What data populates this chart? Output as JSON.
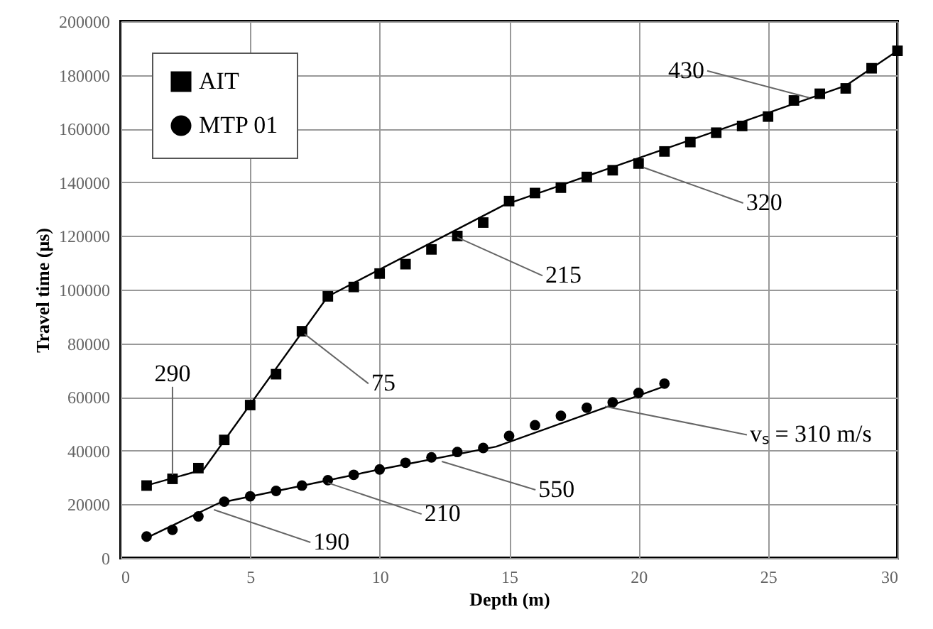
{
  "chart_data": {
    "type": "scatter",
    "xlabel": "Depth (m)",
    "ylabel": "Travel time (μs)",
    "xlim": [
      0,
      30
    ],
    "xticks": [
      0,
      5,
      10,
      15,
      20,
      25,
      30
    ],
    "ylim": [
      0,
      200000
    ],
    "yticks": [
      0,
      20000,
      40000,
      60000,
      80000,
      100000,
      120000,
      140000,
      160000,
      180000,
      200000
    ],
    "grid": true,
    "legend": "top left",
    "series": [
      {
        "name": "AIT",
        "type": "scatter",
        "marker": "square",
        "color": "#000000",
        "x": [
          1,
          2,
          3,
          4,
          5,
          6,
          7,
          8,
          9,
          10,
          11,
          12,
          13,
          14,
          15,
          16,
          17,
          18,
          19,
          20,
          21,
          22,
          23,
          24,
          25,
          26,
          27,
          28,
          29,
          30
        ],
        "values": [
          27000,
          29500,
          33500,
          44000,
          57000,
          68500,
          84500,
          97500,
          101000,
          106000,
          109500,
          115000,
          120000,
          125000,
          133000,
          136000,
          138000,
          142000,
          144500,
          147000,
          151500,
          155000,
          158500,
          161000,
          164500,
          170500,
          173000,
          175000,
          182500,
          189000
        ]
      },
      {
        "name": "MTP 01",
        "type": "scatter",
        "marker": "circle",
        "color": "#000000",
        "x": [
          1,
          2,
          3,
          4,
          5,
          6,
          7,
          8,
          9,
          10,
          11,
          12,
          13,
          14,
          15,
          16,
          17,
          18,
          19,
          20,
          21
        ],
        "values": [
          8000,
          10500,
          15500,
          21000,
          23000,
          25000,
          27000,
          29000,
          31000,
          33000,
          35500,
          37500,
          39500,
          41000,
          45500,
          49500,
          53000,
          56000,
          58000,
          61500,
          65000
        ]
      },
      {
        "type": "line",
        "color": "#000000",
        "x": [
          0.8,
          3.2,
          8,
          14.8,
          28,
          30
        ],
        "values": [
          26500,
          33000,
          97500,
          131500,
          176000,
          189000
        ]
      },
      {
        "type": "line",
        "color": "#000000",
        "x": [
          1,
          3.8,
          10,
          14.5,
          21
        ],
        "values": [
          7500,
          20500,
          33000,
          41500,
          64000
        ]
      }
    ],
    "annotations": [
      {
        "text": "290",
        "x": 2,
        "y": 31000
      },
      {
        "text": "75",
        "x": 7.1,
        "y": 83500
      },
      {
        "text": "215",
        "x": 13,
        "y": 119500
      },
      {
        "text": "320",
        "x": 20.2,
        "y": 145500
      },
      {
        "text": "430",
        "x": 26.6,
        "y": 171500
      },
      {
        "text": "190",
        "x": 3.6,
        "y": 18000
      },
      {
        "text": "210",
        "x": 8,
        "y": 28000
      },
      {
        "text": "550",
        "x": 12.4,
        "y": 36000
      },
      {
        "text": "vₛ = 310 m/s",
        "x": 18.7,
        "y": 56500
      }
    ]
  }
}
